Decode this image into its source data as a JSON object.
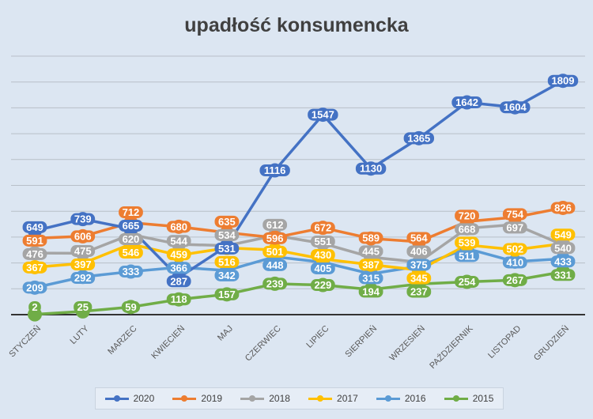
{
  "chart_data": {
    "type": "line",
    "title": "upadłość konsumencka",
    "categories": [
      "STYCZEŃ",
      "LUTY",
      "MARZEC",
      "KWIECIEŃ",
      "MAJ",
      "CZERWIEC",
      "LIPIEC",
      "SIERPIEŃ",
      "WRZESIEŃ",
      "PAŹDZIERNIK",
      "LISTOPAD",
      "GRUDZIEŃ"
    ],
    "ylim": [
      0,
      2000
    ],
    "grid": true,
    "legend": "bottom",
    "series": [
      {
        "name": "2020",
        "color": "#4472c4",
        "values": [
          649,
          739,
          665,
          287,
          531,
          1116,
          1547,
          1130,
          1365,
          1642,
          1604,
          1809
        ]
      },
      {
        "name": "2019",
        "color": "#ed7d31",
        "values": [
          591,
          606,
          712,
          680,
          635,
          596,
          672,
          589,
          564,
          720,
          754,
          826
        ]
      },
      {
        "name": "2018",
        "color": "#a5a5a5",
        "values": [
          476,
          475,
          620,
          544,
          534,
          612,
          551,
          445,
          406,
          668,
          697,
          540
        ]
      },
      {
        "name": "2017",
        "color": "#ffc000",
        "values": [
          367,
          397,
          546,
          459,
          516,
          501,
          430,
          387,
          345,
          539,
          502,
          549
        ]
      },
      {
        "name": "2016",
        "color": "#5b9bd5",
        "values": [
          209,
          292,
          333,
          366,
          342,
          448,
          405,
          315,
          375,
          511,
          410,
          433
        ]
      },
      {
        "name": "2015",
        "color": "#70ad47",
        "values": [
          2,
          25,
          59,
          118,
          157,
          239,
          229,
          194,
          237,
          254,
          267,
          331
        ]
      }
    ]
  }
}
